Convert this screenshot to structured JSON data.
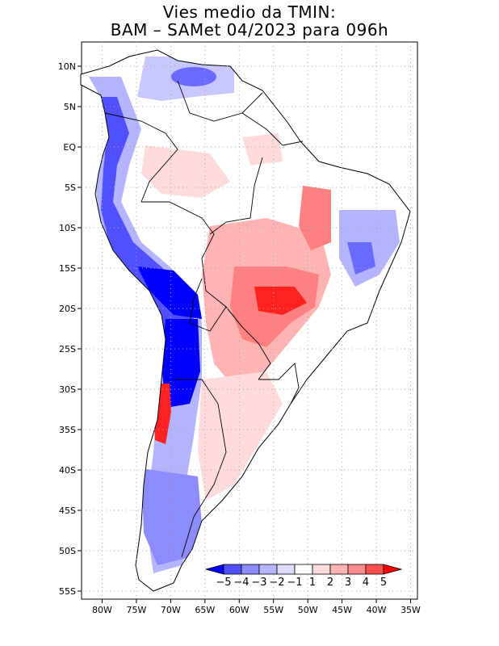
{
  "title": {
    "line1": "Vies medio da TMIN:",
    "line2": "BAM – SAMet 04/2023  para 096h"
  },
  "map": {
    "lon_labels": [
      "80W",
      "75W",
      "70W",
      "65W",
      "60W",
      "55W",
      "50W",
      "45W",
      "40W",
      "35W"
    ],
    "lat_labels": [
      "10N",
      "5N",
      "EQ",
      "5S",
      "10S",
      "15S",
      "20S",
      "25S",
      "30S",
      "35S",
      "40S",
      "45S",
      "50S",
      "55S"
    ],
    "lon_values": [
      -80,
      -75,
      -70,
      -65,
      -60,
      -55,
      -50,
      -45,
      -40,
      -35
    ],
    "lat_values": [
      10,
      5,
      0,
      -5,
      -10,
      -15,
      -20,
      -25,
      -30,
      -35,
      -40,
      -45,
      -50,
      -55
    ],
    "lon_range": [
      -83,
      -34
    ],
    "lat_range": [
      -56,
      13
    ]
  },
  "colorbar": {
    "labels": [
      "−5",
      "−4",
      "−3",
      "−2",
      "−1",
      "1",
      "2",
      "3",
      "4",
      "5"
    ],
    "colors": [
      "#0000ff",
      "#5050ff",
      "#8c8cff",
      "#b4b4ff",
      "#dcdcff",
      "#ffffff",
      "#ffdcdc",
      "#ffb4b4",
      "#ff8c8c",
      "#ff5050",
      "#ff0000"
    ]
  },
  "colors": {
    "strong_blue": "#0000ff",
    "mid_blue": "#6a6aff",
    "light_blue": "#c8c8ff",
    "light_red": "#ffd2d2",
    "mid_red": "#ff8080",
    "strong_red": "#ff2020"
  }
}
